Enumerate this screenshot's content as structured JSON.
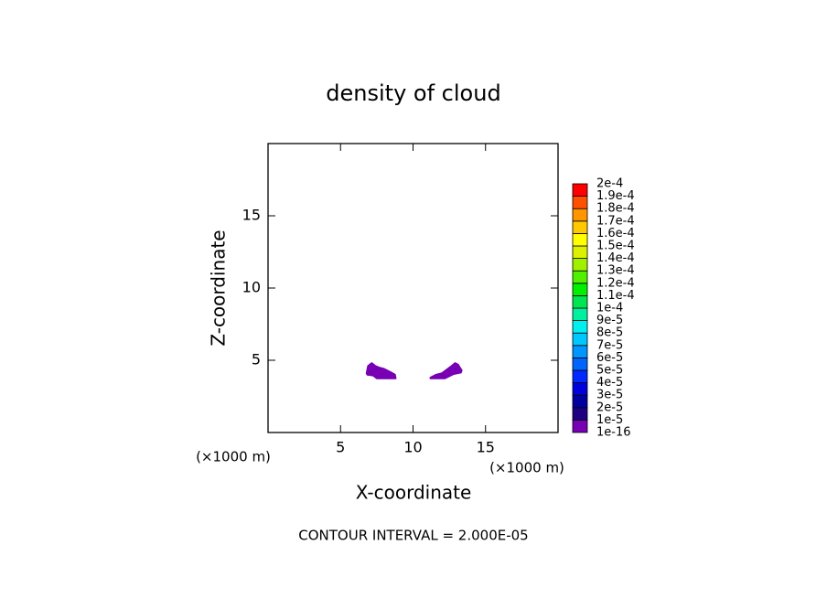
{
  "chart_data": {
    "type": "contour",
    "title": "density of cloud",
    "x_label": "X-coordinate",
    "y_label": "Z-coordinate",
    "x_unit": "(×1000 m)",
    "y_unit": "(×1000 m)",
    "footnote": "CONTOUR INTERVAL = 2.000E-05",
    "xlim": [
      0,
      20
    ],
    "ylim": [
      0,
      20
    ],
    "xticks": [
      5,
      10,
      15
    ],
    "yticks": [
      5,
      10,
      15
    ],
    "colorbar": {
      "levels": [
        {
          "value": 1e-16,
          "label": "1e-16"
        },
        {
          "value": 1e-05,
          "label": "1e-5"
        },
        {
          "value": 2e-05,
          "label": "2e-5"
        },
        {
          "value": 3e-05,
          "label": "3e-5"
        },
        {
          "value": 4e-05,
          "label": "4e-5"
        },
        {
          "value": 5e-05,
          "label": "5e-5"
        },
        {
          "value": 6e-05,
          "label": "6e-5"
        },
        {
          "value": 7e-05,
          "label": "7e-5"
        },
        {
          "value": 8e-05,
          "label": "8e-5"
        },
        {
          "value": 9e-05,
          "label": "9e-5"
        },
        {
          "value": 0.0001,
          "label": "1e-4"
        },
        {
          "value": 0.00011,
          "label": "1.1e-4"
        },
        {
          "value": 0.00012,
          "label": "1.2e-4"
        },
        {
          "value": 0.00013,
          "label": "1.3e-4"
        },
        {
          "value": 0.00014,
          "label": "1.4e-4"
        },
        {
          "value": 0.00015,
          "label": "1.5e-4"
        },
        {
          "value": 0.00016,
          "label": "1.6e-4"
        },
        {
          "value": 0.00017,
          "label": "1.7e-4"
        },
        {
          "value": 0.00018,
          "label": "1.8e-4"
        },
        {
          "value": 0.00019,
          "label": "1.9e-4"
        },
        {
          "value": 0.0002,
          "label": "2e-4"
        }
      ],
      "colors": [
        "#7800b4",
        "#1e0082",
        "#0000a0",
        "#0000dc",
        "#0028ff",
        "#0064ff",
        "#0096ff",
        "#00c8ff",
        "#00f0f0",
        "#00f0a0",
        "#00e650",
        "#00f000",
        "#50f000",
        "#a0f000",
        "#dcf000",
        "#ffff00",
        "#ffc800",
        "#ff9600",
        "#ff5000",
        "#ff0000",
        "#f08080"
      ]
    },
    "regions": [
      {
        "color": "#7800b4",
        "x": [
          6.8,
          6.9,
          7.15,
          7.4,
          7.65,
          8.0,
          8.4,
          8.75,
          8.8,
          7.5,
          7.25,
          6.85
        ],
        "y": [
          4.1,
          4.6,
          4.8,
          4.6,
          4.5,
          4.4,
          4.2,
          4.0,
          3.75,
          3.75,
          3.95,
          4.0
        ]
      },
      {
        "color": "#7800b4",
        "x": [
          11.2,
          11.6,
          12.0,
          12.4,
          12.6,
          12.9,
          13.1,
          13.35,
          13.3,
          12.8,
          12.2,
          11.2
        ],
        "y": [
          3.8,
          4.0,
          4.1,
          4.4,
          4.55,
          4.8,
          4.7,
          4.3,
          4.15,
          4.05,
          3.75,
          3.75
        ]
      }
    ]
  }
}
